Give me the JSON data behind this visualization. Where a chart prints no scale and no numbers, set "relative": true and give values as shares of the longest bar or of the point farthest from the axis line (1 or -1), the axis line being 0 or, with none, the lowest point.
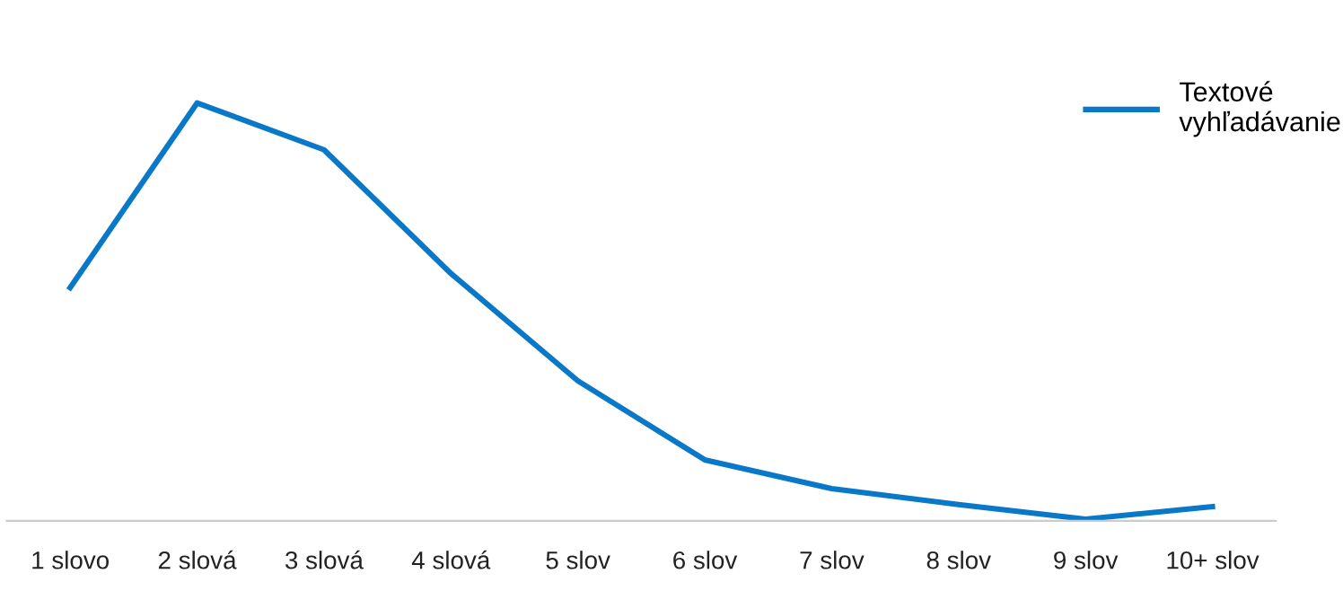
{
  "chart_data": {
    "type": "line",
    "relative": true,
    "categories": [
      "1 slovo",
      "2 slová",
      "3 slová",
      "4 slová",
      "5 slov",
      "6 slov",
      "7 slov",
      "8 slov",
      "9 slov",
      "10+ slov"
    ],
    "series": [
      {
        "name": "Textové\nvyhľadávanie",
        "color": "#0a78c8",
        "values": [
          0.558,
          1,
          0.888,
          0.592,
          0.335,
          0.146,
          0.077,
          0.039,
          0.004,
          0.034
        ]
      }
    ],
    "legend": "top right",
    "grid": false,
    "marker": "none",
    "line_style": "solid"
  }
}
